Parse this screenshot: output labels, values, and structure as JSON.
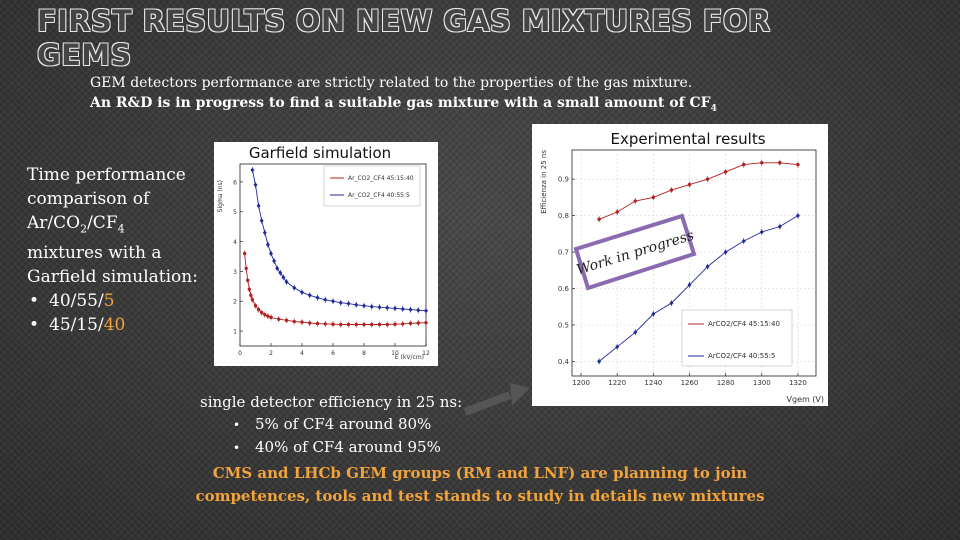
{
  "slide": {
    "title": "FIRST RESULTS ON NEW GAS MIXTURES FOR GEMS",
    "intro_line1": "GEM detectors performance are strictly related to the properties of the gas mixture.",
    "intro_line2_main": "An R&D is in progress to find a suitable gas mixture with a small amount of CF",
    "intro_line2_sub": "4"
  },
  "left_panel": {
    "lines": [
      "Time performance",
      "comparison of"
    ],
    "gas_ar": "Ar/CO",
    "gas_co2_sub": "2",
    "gas_slash": "/CF",
    "gas_cf4_sub": "4",
    "lines_after": [
      "mixtures with a",
      "Garfield simulation:"
    ],
    "bullet": "•",
    "items": [
      {
        "main": "40/55/",
        "highlight": "5"
      },
      {
        "main": "45/15/",
        "highlight": "40"
      }
    ]
  },
  "garfield_chart": {
    "title": "Garfield simulation",
    "x_label": "E (kV/cm)",
    "y_label": "Sigma (ns)",
    "x_ticks": [
      "0",
      "2",
      "4",
      "6",
      "8",
      "10",
      "12"
    ],
    "y_ticks": [
      "1",
      "2",
      "3",
      "4",
      "5",
      "6"
    ],
    "legend": [
      "Ar_CO2_CF4 45:15:40",
      "Ar_CO2_CF4 40:55:5"
    ]
  },
  "exp_chart": {
    "title": "Experimental results",
    "y_label": "Efficienza in 25 ns",
    "x_label": "Vgem (V)",
    "x_ticks": [
      "1200",
      "1220",
      "1240",
      "1260",
      "1280",
      "1300",
      "1320"
    ],
    "y_ticks": [
      "0.4",
      "0.5",
      "0.6",
      "0.7",
      "0.8",
      "0.9"
    ],
    "legend": [
      "ArCO2/CF4 45:15:40",
      "ArCO2/CF4 40:55:5"
    ],
    "stamp": "Work in progress"
  },
  "chart_data": [
    {
      "type": "line",
      "title": "Garfield simulation",
      "xlabel": "E (kV/cm)",
      "ylabel": "Sigma (ns)",
      "xlim": [
        0,
        12
      ],
      "ylim": [
        0.5,
        6.6
      ],
      "series": [
        {
          "name": "Ar_CO2_CF4 45:15:40",
          "x": [
            0.3,
            0.4,
            0.5,
            0.6,
            0.7,
            0.8,
            1.0,
            1.2,
            1.4,
            1.6,
            1.8,
            2.0,
            2.5,
            3.0,
            3.5,
            4.0,
            4.5,
            5.0,
            5.5,
            6.0,
            6.5,
            7.0,
            7.5,
            8.0,
            8.5,
            9.0,
            9.5,
            10.0,
            10.5,
            11.0,
            11.5,
            12.0
          ],
          "y": [
            3.6,
            3.1,
            2.7,
            2.4,
            2.2,
            2.05,
            1.85,
            1.72,
            1.62,
            1.55,
            1.5,
            1.46,
            1.4,
            1.36,
            1.32,
            1.3,
            1.27,
            1.25,
            1.24,
            1.23,
            1.22,
            1.22,
            1.22,
            1.22,
            1.22,
            1.22,
            1.22,
            1.23,
            1.24,
            1.26,
            1.27,
            1.28
          ]
        },
        {
          "name": "Ar_CO2_CF4 40:55:5",
          "x": [
            0.8,
            1.0,
            1.2,
            1.4,
            1.6,
            1.8,
            2.0,
            2.2,
            2.4,
            2.6,
            2.8,
            3.0,
            3.5,
            4.0,
            4.5,
            5.0,
            5.5,
            6.0,
            6.5,
            7.0,
            7.5,
            8.0,
            8.5,
            9.0,
            9.5,
            10.0,
            10.5,
            11.0,
            11.5,
            12.0
          ],
          "y": [
            6.4,
            5.9,
            5.2,
            4.7,
            4.3,
            3.9,
            3.6,
            3.35,
            3.1,
            2.95,
            2.8,
            2.65,
            2.45,
            2.3,
            2.2,
            2.12,
            2.05,
            2.0,
            1.95,
            1.92,
            1.88,
            1.85,
            1.82,
            1.8,
            1.78,
            1.76,
            1.74,
            1.72,
            1.7,
            1.68
          ]
        }
      ]
    },
    {
      "type": "line",
      "title": "Experimental results",
      "xlabel": "Vgem (V)",
      "ylabel": "Efficienza in 25 ns",
      "xlim": [
        1195,
        1330
      ],
      "ylim": [
        0.36,
        0.98
      ],
      "series": [
        {
          "name": "ArCO2/CF4 45:15:40",
          "x": [
            1210,
            1220,
            1230,
            1240,
            1250,
            1260,
            1270,
            1280,
            1290,
            1300,
            1310,
            1320
          ],
          "y": [
            0.79,
            0.81,
            0.84,
            0.85,
            0.87,
            0.885,
            0.9,
            0.92,
            0.94,
            0.945,
            0.945,
            0.94
          ]
        },
        {
          "name": "ArCO2/CF4 40:55:5",
          "x": [
            1210,
            1220,
            1230,
            1240,
            1250,
            1260,
            1270,
            1280,
            1290,
            1300,
            1310,
            1320
          ],
          "y": [
            0.4,
            0.44,
            0.48,
            0.53,
            0.56,
            0.61,
            0.66,
            0.7,
            0.73,
            0.755,
            0.77,
            0.8
          ]
        }
      ]
    }
  ],
  "efficiency": {
    "heading": "single detector efficiency in 25 ns:",
    "bullet": "•",
    "items": [
      "5% of CF4 around 80%",
      "40% of CF4 around 95%"
    ]
  },
  "bottom_note": {
    "line1": "CMS and LHCb GEM groups (RM and LNF) are planning to join",
    "line2": "competences, tools and test stands to study in details new mixtures"
  },
  "colors": {
    "highlight": "#f2a33a",
    "series_red": "#b02222",
    "series_blue": "#202a9a",
    "stamp_border": "#8a6ab0"
  }
}
